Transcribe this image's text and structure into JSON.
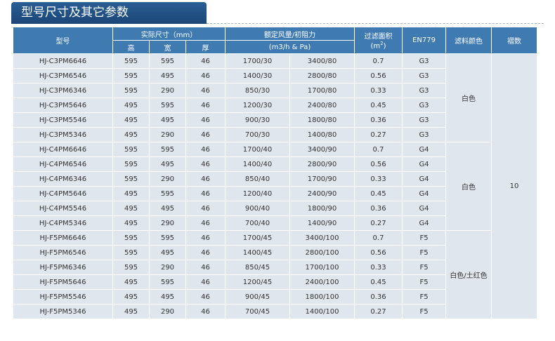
{
  "title": "型号尺寸及其它参数",
  "headers": {
    "model": "型号",
    "size": "实际尺寸（mm）",
    "h": "高",
    "w": "宽",
    "d": "厚",
    "airflow": "额定风量/初阻力",
    "airflow_unit": "(m3/h & Pa)",
    "area": "过滤面积",
    "area_unit": "(m",
    "area_sup": "2",
    "area_close": ")",
    "en": "EN779",
    "color": "滤料颜色",
    "pleats": "褶数"
  },
  "colors": {
    "g3": "白色",
    "g4": "白色",
    "f5": "白色/土红色"
  },
  "pleats_value": "10",
  "rows": [
    [
      "HJ-C3PM6646",
      "595",
      "595",
      "46",
      "1700/30",
      "3400/80",
      "0.7",
      "G3"
    ],
    [
      "HJ-C3PM6546",
      "595",
      "495",
      "46",
      "1400/30",
      "2800/80",
      "0.56",
      "G3"
    ],
    [
      "HJ-C3PM6346",
      "595",
      "290",
      "46",
      "850/30",
      "1700/80",
      "0.33",
      "G3"
    ],
    [
      "HJ-C3PM5646",
      "495",
      "595",
      "46",
      "1200/30",
      "2400/80",
      "0.45",
      "G3"
    ],
    [
      "HJ-C3PM5546",
      "495",
      "495",
      "46",
      "900/30",
      "1800/80",
      "0.36",
      "G3"
    ],
    [
      "HJ-C3PM5346",
      "495",
      "290",
      "46",
      "700/30",
      "1400/80",
      "0.27",
      "G3"
    ],
    [
      "HJ-C4PM6646",
      "595",
      "595",
      "46",
      "1700/40",
      "3400/90",
      "0.7",
      "G4"
    ],
    [
      "HJ-C4PM6546",
      "595",
      "495",
      "46",
      "1400/40",
      "2800/90",
      "0.56",
      "G4"
    ],
    [
      "HJ-C4PM6346",
      "595",
      "290",
      "46",
      "850/40",
      "1700/90",
      "0.33",
      "G4"
    ],
    [
      "HJ-C4PM5646",
      "495",
      "595",
      "46",
      "1200/40",
      "2400/90",
      "0.45",
      "G4"
    ],
    [
      "HJ-C4PM5546",
      "495",
      "495",
      "46",
      "900/40",
      "1800/90",
      "0.36",
      "G4"
    ],
    [
      "HJ-C4PM5346",
      "495",
      "290",
      "46",
      "700/40",
      "1400/90",
      "0.27",
      "G4"
    ],
    [
      "HJ-F5PM6646",
      "595",
      "595",
      "46",
      "1700/45",
      "3400/100",
      "0.7",
      "F5"
    ],
    [
      "HJ-F5PM6546",
      "595",
      "495",
      "46",
      "1400/45",
      "2800/100",
      "0.56",
      "F5"
    ],
    [
      "HJ-F5PM6346",
      "595",
      "290",
      "46",
      "850/45",
      "1700/100",
      "0.33",
      "F5"
    ],
    [
      "HJ-F5PM5646",
      "495",
      "595",
      "46",
      "1200/45",
      "2400/100",
      "0.45",
      "F5"
    ],
    [
      "HJ-F5PM5546",
      "495",
      "495",
      "46",
      "900/45",
      "1800/100",
      "0.36",
      "F5"
    ],
    [
      "HJ-F5PM5346",
      "495",
      "290",
      "46",
      "700/45",
      "1400/100",
      "0.27",
      "F5"
    ]
  ]
}
